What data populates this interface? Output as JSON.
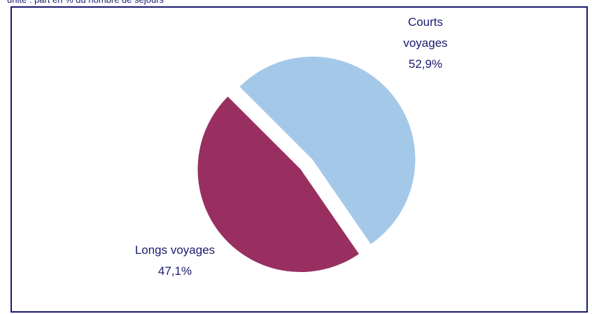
{
  "caption": "unité : part en % du nombre de séjours",
  "chart_data": {
    "type": "pie",
    "slices": [
      {
        "name_line1": "Courts",
        "name_line2": "voyages",
        "value": 52.9,
        "value_label": "52,9%",
        "color": "#a4c9e8"
      },
      {
        "name_line1": "Longs voyages",
        "name_line2": "",
        "value": 47.1,
        "value_label": "47,1%",
        "color": "#992f61"
      }
    ]
  }
}
